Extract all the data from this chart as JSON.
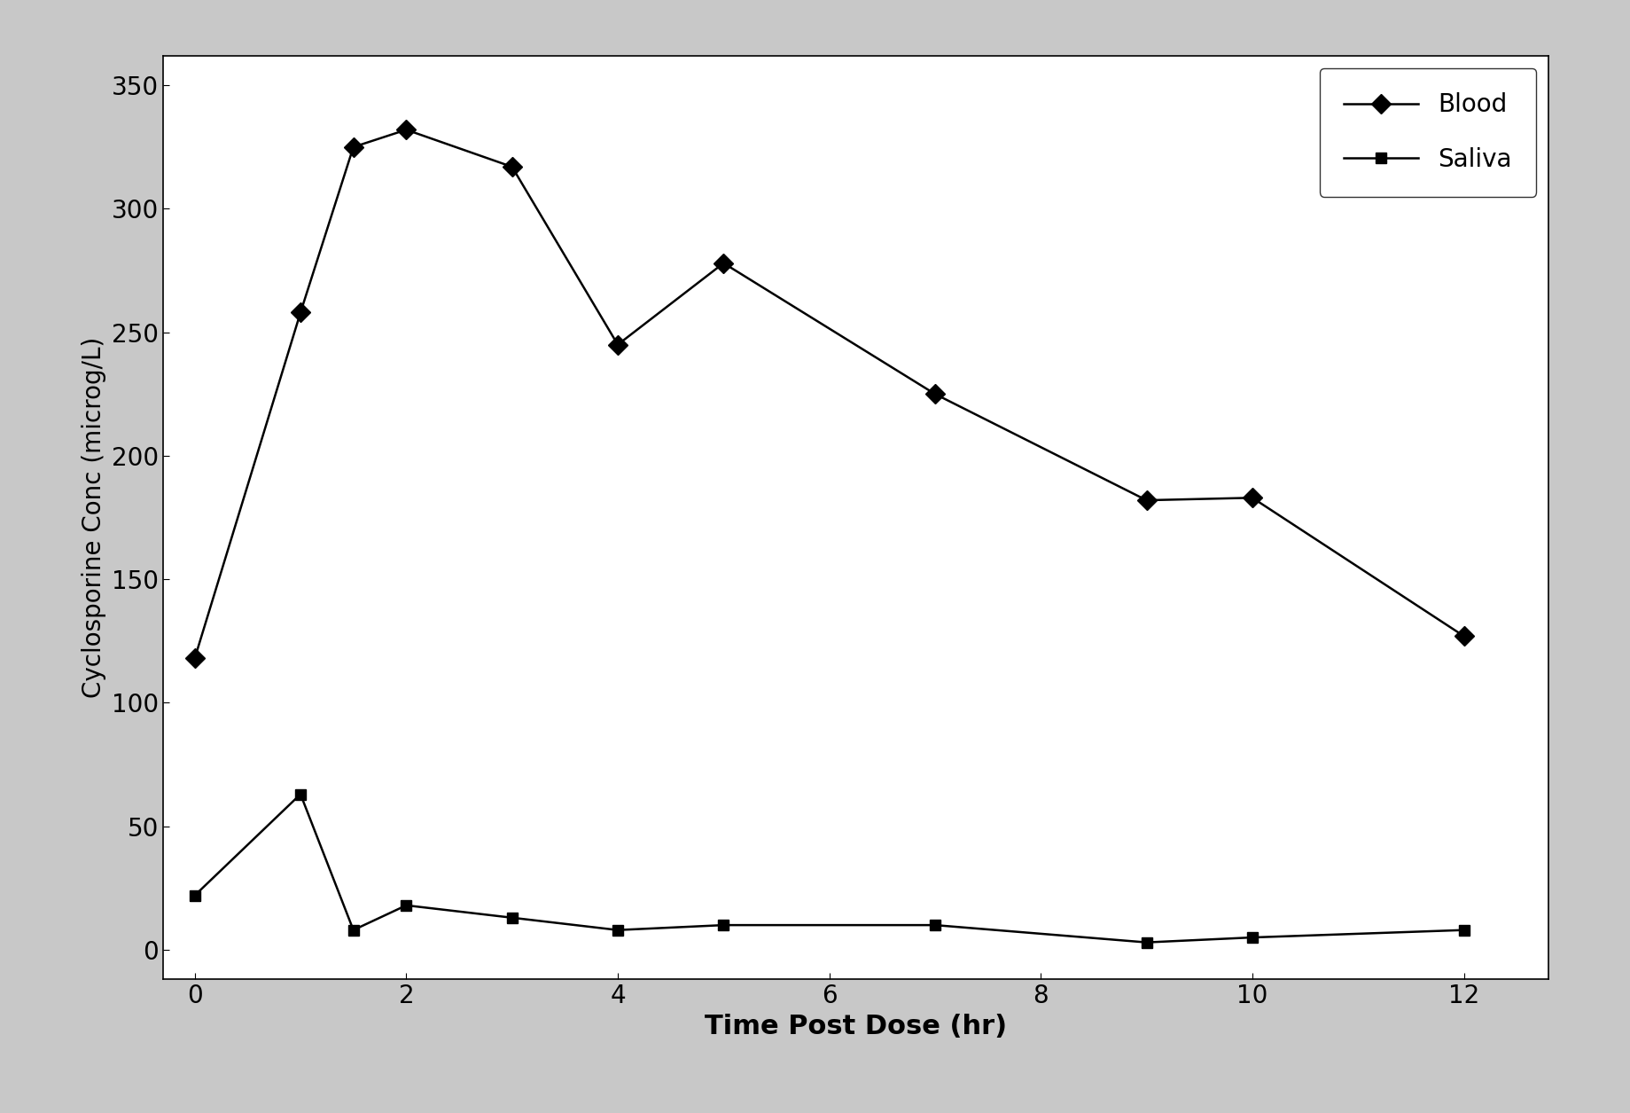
{
  "blood_x": [
    0,
    1,
    1.5,
    2,
    3,
    4,
    5,
    7,
    9,
    10,
    12
  ],
  "blood_y": [
    118,
    258,
    325,
    332,
    317,
    245,
    278,
    225,
    182,
    183,
    127
  ],
  "saliva_x": [
    0,
    1,
    1.5,
    2,
    3,
    4,
    5,
    7,
    9,
    10,
    12
  ],
  "saliva_y": [
    22,
    63,
    8,
    18,
    13,
    8,
    10,
    10,
    3,
    5,
    8
  ],
  "xlabel": "Time Post Dose (hr)",
  "ylabel": "Cyclosporine Conc (microg/L)",
  "blood_label": "Blood",
  "saliva_label": "Saliva",
  "xlim": [
    -0.3,
    12.8
  ],
  "ylim": [
    -12,
    362
  ],
  "xticks": [
    0,
    2,
    4,
    6,
    8,
    10,
    12
  ],
  "yticks": [
    0,
    50,
    100,
    150,
    200,
    250,
    300,
    350
  ],
  "line_color": "#000000",
  "background_color": "#c8c8c8",
  "plot_bg_color": "#ffffff",
  "marker_blood": "D",
  "marker_saliva": "s",
  "markersize_blood": 11,
  "markersize_saliva": 9,
  "linewidth": 1.8,
  "xlabel_fontsize": 22,
  "ylabel_fontsize": 20,
  "tick_fontsize": 20,
  "legend_fontsize": 20,
  "legend_loc": "upper right",
  "fig_width": 18.39,
  "fig_height": 12.55,
  "dpi": 100
}
